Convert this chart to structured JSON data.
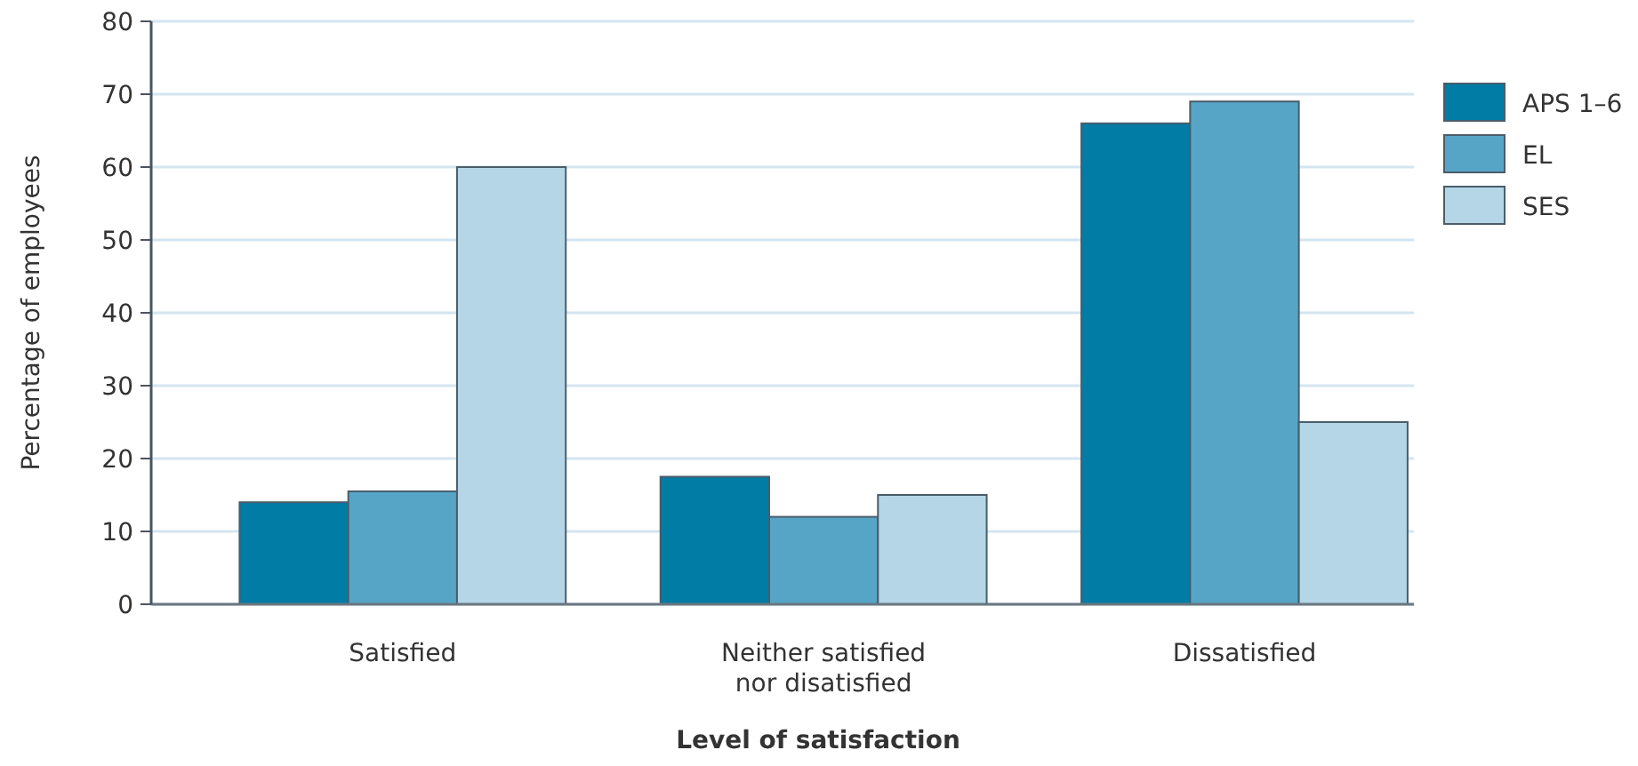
{
  "chart_data": {
    "type": "bar",
    "xlabel": "Level of satisfaction",
    "ylabel": "Percentage of employees",
    "categories": [
      "Satisfied",
      "Neither satisfied\nnor disatisfied",
      "Dissatisfied"
    ],
    "series": [
      {
        "name": "APS 1–6",
        "color": "#007ca5",
        "values": [
          14,
          17.5,
          66
        ]
      },
      {
        "name": "EL",
        "color": "#56a5c6",
        "values": [
          15.5,
          12,
          69
        ]
      },
      {
        "name": "SES",
        "color": "#b5d6e6",
        "values": [
          60,
          15,
          25
        ]
      }
    ],
    "ylim": [
      0,
      80
    ],
    "yticks": [
      0,
      10,
      20,
      30,
      40,
      50,
      60,
      70,
      80
    ],
    "grid": "y",
    "legend": "right"
  }
}
